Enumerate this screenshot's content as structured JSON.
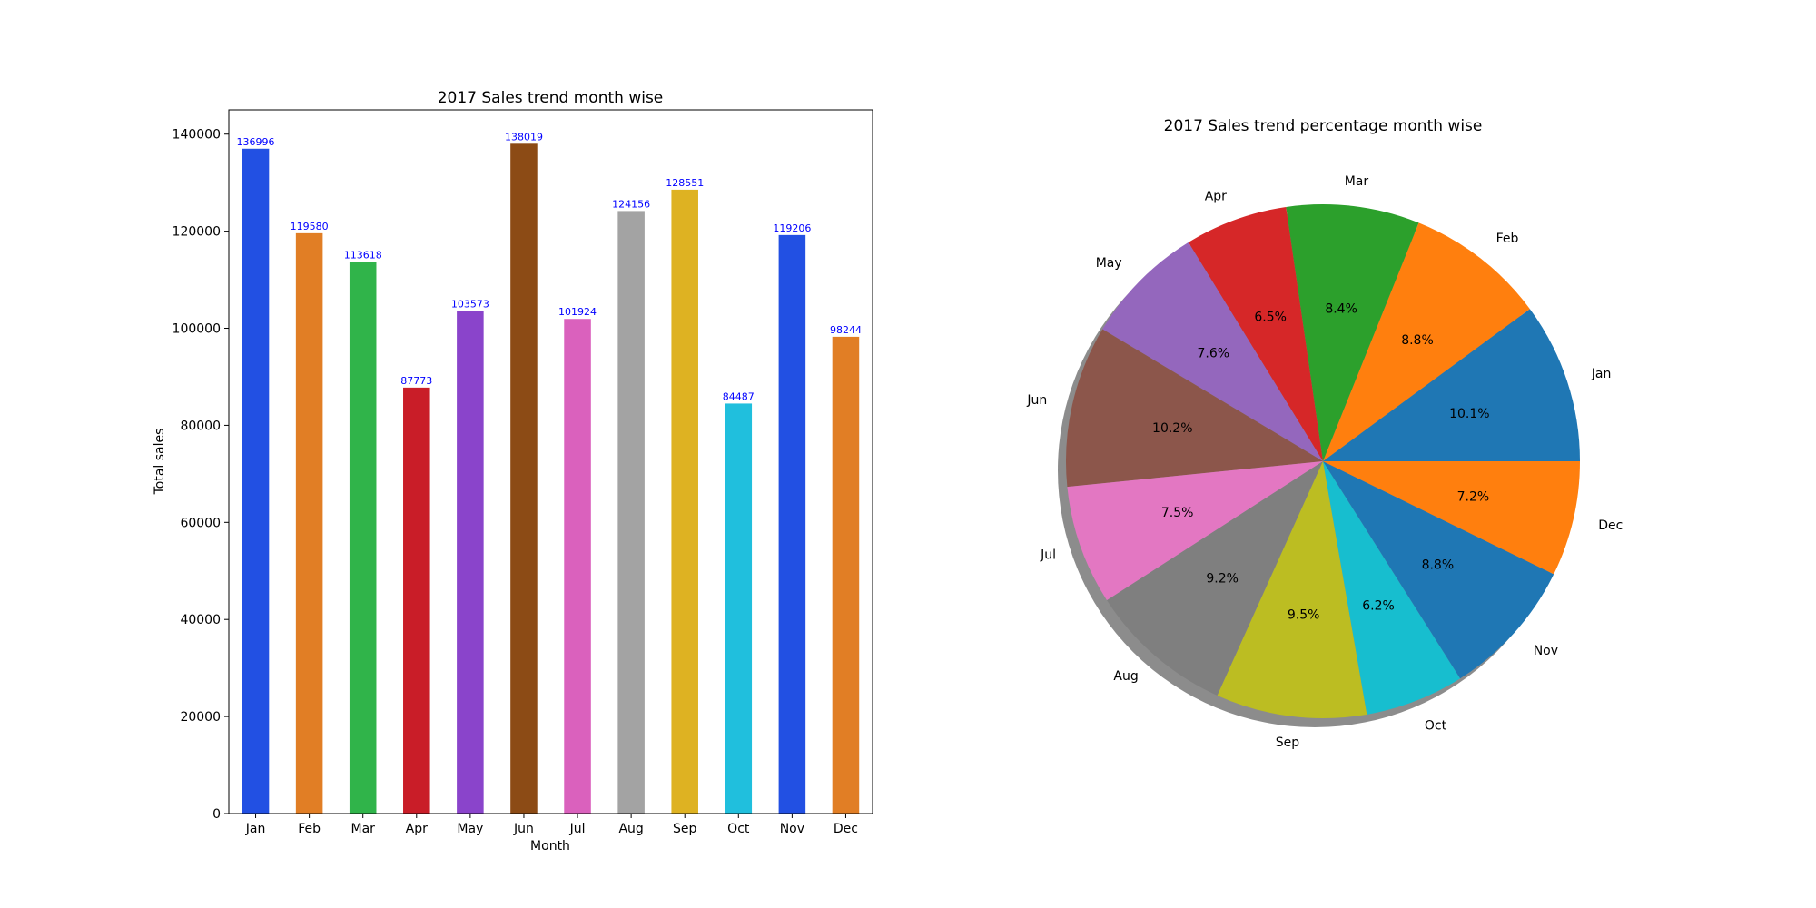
{
  "chart_data": [
    {
      "type": "bar",
      "title": "2017 Sales trend month wise",
      "xlabel": "Month",
      "ylabel": "Total sales",
      "categories": [
        "Jan",
        "Feb",
        "Mar",
        "Apr",
        "May",
        "Jun",
        "Jul",
        "Aug",
        "Sep",
        "Oct",
        "Nov",
        "Dec"
      ],
      "values": [
        136996,
        119580,
        113618,
        87773,
        103573,
        138019,
        101924,
        124156,
        128551,
        84487,
        119206,
        98244
      ],
      "value_labels": [
        "136996",
        "119580",
        "113618",
        "87773",
        "103573",
        "138019",
        "101924",
        "124156",
        "128551",
        "84487",
        "119206",
        "98244"
      ],
      "ylim": [
        0,
        145000
      ],
      "yticks": [
        0,
        20000,
        40000,
        60000,
        80000,
        100000,
        120000,
        140000
      ],
      "ytick_labels": [
        "0",
        "20000",
        "40000",
        "60000",
        "80000",
        "100000",
        "120000",
        "140000"
      ],
      "colors": [
        "#2250e3",
        "#e17e25",
        "#30b44a",
        "#c91d28",
        "#8a44cb",
        "#8c4b15",
        "#da61bd",
        "#a3a3a3",
        "#deb222",
        "#20bfdd",
        "#2250e3",
        "#e17e25"
      ],
      "value_label_color": "#0000ff",
      "grid": false,
      "legend": "none"
    },
    {
      "type": "pie",
      "title": "2017 Sales trend percentage month wise",
      "labels": [
        "Jan",
        "Feb",
        "Mar",
        "Apr",
        "May",
        "Jun",
        "Jul",
        "Aug",
        "Sep",
        "Oct",
        "Nov",
        "Dec"
      ],
      "percent_labels": [
        "10.1%",
        "8.8%",
        "8.4%",
        "6.5%",
        "7.6%",
        "10.2%",
        "7.5%",
        "9.2%",
        "9.5%",
        "6.2%",
        "8.8%",
        "7.2%"
      ],
      "values": [
        136996,
        119580,
        113618,
        87773,
        103573,
        138019,
        101924,
        124156,
        128551,
        84487,
        119206,
        98244
      ],
      "colors": [
        "#1f77b4",
        "#ff7f0e",
        "#2ca02c",
        "#d62728",
        "#9467bd",
        "#8c564b",
        "#e377c2",
        "#7f7f7f",
        "#bcbd22",
        "#17becf",
        "#1f77b4",
        "#ff7f0e"
      ],
      "start_angle": 0,
      "direction": "counterclockwise",
      "shadow": true,
      "legend": "none"
    }
  ]
}
